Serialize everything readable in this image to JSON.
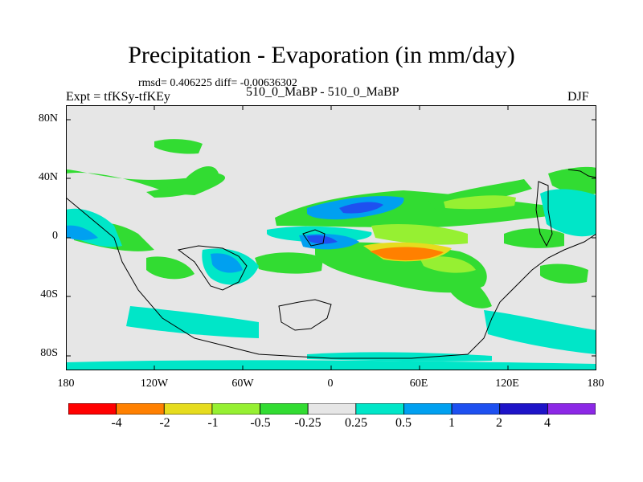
{
  "title": "Precipitation - Evaporation (in mm/day)",
  "stats": "rmsd= 0.406225  diff= -0.00636302",
  "left_label": "Expt = tfKSy-tfKEy",
  "center_label": "510_0_MaBP - 510_0_MaBP",
  "right_label": "DJF",
  "map": {
    "projection": "cylindrical-equidistant",
    "lat_range": [
      -90,
      90
    ],
    "lon_range": [
      -180,
      180
    ],
    "lat_ticks": [
      "80N",
      "40N",
      "0",
      "40S",
      "80S"
    ],
    "lon_ticks": [
      "180",
      "120W",
      "60W",
      "0",
      "60E",
      "120E",
      "180"
    ],
    "background_color": "#e6e6e6"
  },
  "colorbar": {
    "labels": [
      "-4",
      "-2",
      "-1",
      "-0.5",
      "-0.25",
      "0.25",
      "0.5",
      "1",
      "2",
      "4"
    ],
    "colors": [
      "#ff0000",
      "#ff8000",
      "#e6dc1e",
      "#96f032",
      "#32dc32",
      "#e6e6e6",
      "#00e6c8",
      "#00a0f0",
      "#1e50f0",
      "#1e14c8",
      "#8c28e6"
    ]
  }
}
